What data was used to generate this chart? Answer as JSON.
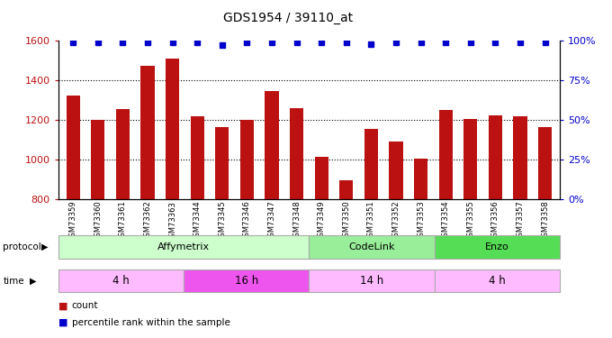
{
  "title": "GDS1954 / 39110_at",
  "samples": [
    "GSM73359",
    "GSM73360",
    "GSM73361",
    "GSM73362",
    "GSM73363",
    "GSM73344",
    "GSM73345",
    "GSM73346",
    "GSM73347",
    "GSM73348",
    "GSM73349",
    "GSM73350",
    "GSM73351",
    "GSM73352",
    "GSM73353",
    "GSM73354",
    "GSM73355",
    "GSM73356",
    "GSM73357",
    "GSM73358"
  ],
  "counts": [
    1325,
    1200,
    1255,
    1475,
    1510,
    1220,
    1165,
    1200,
    1345,
    1260,
    1015,
    895,
    1155,
    1090,
    1005,
    1250,
    1205,
    1225,
    1220,
    1165
  ],
  "percentile_ranks": [
    99,
    99,
    99,
    99,
    99,
    99,
    97,
    99,
    99,
    99,
    99,
    99,
    98,
    99,
    99,
    99,
    99,
    99,
    99,
    99
  ],
  "ylim_left": [
    800,
    1600
  ],
  "ylim_right": [
    0,
    100
  ],
  "yticks_left": [
    800,
    1000,
    1200,
    1400,
    1600
  ],
  "yticks_right": [
    0,
    25,
    50,
    75,
    100
  ],
  "bar_color": "#BB1111",
  "dot_color": "#0000CC",
  "protocol_groups": [
    {
      "label": "Affymetrix",
      "start": 0,
      "end": 9,
      "color": "#CCFFCC"
    },
    {
      "label": "CodeLink",
      "start": 10,
      "end": 14,
      "color": "#99EE99"
    },
    {
      "label": "Enzo",
      "start": 15,
      "end": 19,
      "color": "#55DD55"
    }
  ],
  "time_groups": [
    {
      "label": "4 h",
      "start": 0,
      "end": 4,
      "color": "#FFBBFF"
    },
    {
      "label": "16 h",
      "start": 5,
      "end": 9,
      "color": "#EE55EE"
    },
    {
      "label": "14 h",
      "start": 10,
      "end": 14,
      "color": "#FFBBFF"
    },
    {
      "label": "4 h",
      "start": 15,
      "end": 19,
      "color": "#FFBBFF"
    }
  ]
}
